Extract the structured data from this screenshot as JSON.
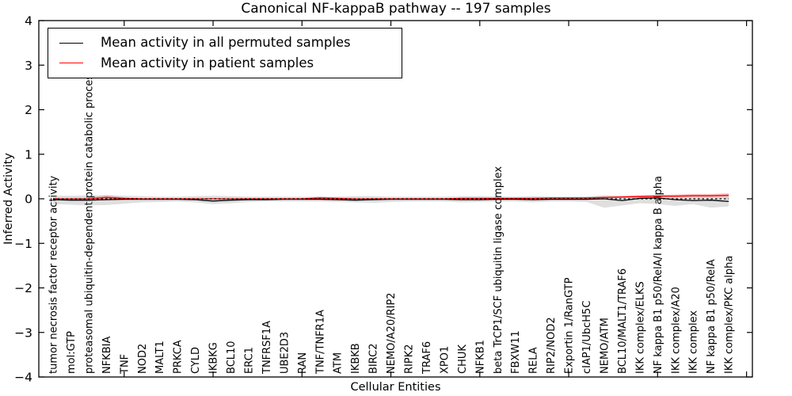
{
  "chart_data": {
    "type": "line",
    "title": "Canonical NF-kappaB pathway -- 197 samples",
    "xlabel": "Cellular Entities",
    "ylabel": "Inferred Activity",
    "ylim": [
      -4,
      4
    ],
    "yticks": [
      4,
      3,
      2,
      1,
      0,
      -1,
      -2,
      -3,
      -4
    ],
    "grid": false,
    "legend_position": "upper left",
    "baseline": {
      "value": 0,
      "style": "dotted",
      "color": "#000000"
    },
    "categories": [
      "tumor necrosis factor receptor activity",
      "mol:GTP",
      "proteasomal ubiquitin-dependent protein catabolic process",
      "NFKBIA",
      "TNF",
      "NOD2",
      "MALT1",
      "PRKCA",
      "CYLD",
      "IKBKG",
      "BCL10",
      "ERC1",
      "TNFRSF1A",
      "UBE2D3",
      "RAN",
      "TNF/TNFR1A",
      "ATM",
      "IKBKB",
      "BIRC2",
      "NEMO/A20/RIP2",
      "RIPK2",
      "TRAF6",
      "XPO1",
      "CHUK",
      "NFKB1",
      "beta TrCP1/SCF ubiquitin ligase complex",
      "FBXW11",
      "RELA",
      "RIP2/NOD2",
      "Exportin 1/RanGTP",
      "cIAP1/UbcH5C",
      "NEMO/ATM",
      "BCL10/MALT1/TRAF6",
      "IKK complex/ELKS",
      "NF kappa B1 p50/RelA/I kappa B alpha",
      "IKK complex/A20",
      "IKK complex",
      "NF kappa B1 p50/RelA",
      "IKK complex/PKC alpha"
    ],
    "series": [
      {
        "name": "Mean activity in all permuted samples",
        "color": "#000000",
        "band_color": "rgba(128,128,128,0.25)",
        "values": [
          -0.02,
          -0.03,
          -0.03,
          -0.02,
          -0.01,
          -0.01,
          -0.01,
          -0.01,
          -0.02,
          -0.05,
          -0.03,
          -0.02,
          -0.02,
          -0.01,
          -0.01,
          -0.01,
          -0.02,
          -0.03,
          -0.02,
          -0.01,
          -0.01,
          -0.01,
          -0.01,
          -0.02,
          -0.02,
          -0.01,
          -0.01,
          -0.02,
          -0.01,
          -0.01,
          -0.01,
          0,
          -0.04,
          0.01,
          0.02,
          -0.02,
          -0.04,
          -0.03,
          -0.06
        ],
        "band_low": [
          -0.12,
          -0.13,
          -0.15,
          -0.14,
          -0.11,
          -0.08,
          -0.07,
          -0.06,
          -0.08,
          -0.12,
          -0.1,
          -0.07,
          -0.06,
          -0.06,
          -0.06,
          -0.06,
          -0.07,
          -0.08,
          -0.09,
          -0.07,
          -0.06,
          -0.06,
          -0.06,
          -0.08,
          -0.07,
          -0.06,
          -0.06,
          -0.08,
          -0.06,
          -0.06,
          -0.07,
          -0.2,
          -0.15,
          -0.1,
          -0.12,
          -0.16,
          -0.12,
          -0.2,
          -0.17
        ],
        "band_high": [
          0.07,
          0.07,
          0.08,
          0.08,
          0.07,
          0.06,
          0.05,
          0.05,
          0.06,
          0.07,
          0.06,
          0.05,
          0.05,
          0.05,
          0.05,
          0.05,
          0.05,
          0.06,
          0.06,
          0.05,
          0.05,
          0.05,
          0.05,
          0.06,
          0.06,
          0.05,
          0.05,
          0.06,
          0.05,
          0.05,
          0.05,
          0.08,
          0.07,
          0.07,
          0.08,
          0.08,
          0.07,
          0.08,
          0.08
        ]
      },
      {
        "name": "Mean activity in patient samples",
        "color": "#ff0000",
        "band_color": "rgba(255,0,0,0.22)",
        "values": [
          0,
          0,
          0,
          0.03,
          0.01,
          0,
          0,
          0,
          0,
          0,
          0,
          0,
          0,
          0,
          0,
          0.02,
          0.01,
          0,
          0,
          0,
          0,
          0,
          0,
          0.01,
          0.01,
          0.01,
          0.01,
          0.01,
          0.02,
          0.02,
          0.02,
          0.03,
          0.04,
          0.05,
          0.06,
          0.06,
          0.07,
          0.07,
          0.08
        ],
        "band_low": [
          -0.01,
          -0.01,
          -0.01,
          -0.02,
          -0.01,
          -0.01,
          -0.01,
          -0.01,
          -0.01,
          -0.01,
          -0.01,
          -0.01,
          -0.01,
          -0.01,
          -0.01,
          0,
          -0.01,
          -0.01,
          -0.01,
          -0.01,
          -0.01,
          -0.01,
          -0.01,
          0,
          0,
          0,
          0,
          0,
          0.01,
          0.01,
          0.01,
          0.01,
          0.02,
          0.02,
          0.03,
          0.03,
          0.04,
          0.04,
          0.04
        ],
        "band_high": [
          0.01,
          0.01,
          0.02,
          0.08,
          0.03,
          0.01,
          0.01,
          0.01,
          0.01,
          0.01,
          0.01,
          0.01,
          0.01,
          0.01,
          0.01,
          0.05,
          0.02,
          0.01,
          0.01,
          0.01,
          0.01,
          0.01,
          0.01,
          0.02,
          0.02,
          0.02,
          0.02,
          0.02,
          0.03,
          0.03,
          0.04,
          0.05,
          0.06,
          0.08,
          0.09,
          0.1,
          0.11,
          0.11,
          0.13
        ]
      }
    ]
  }
}
